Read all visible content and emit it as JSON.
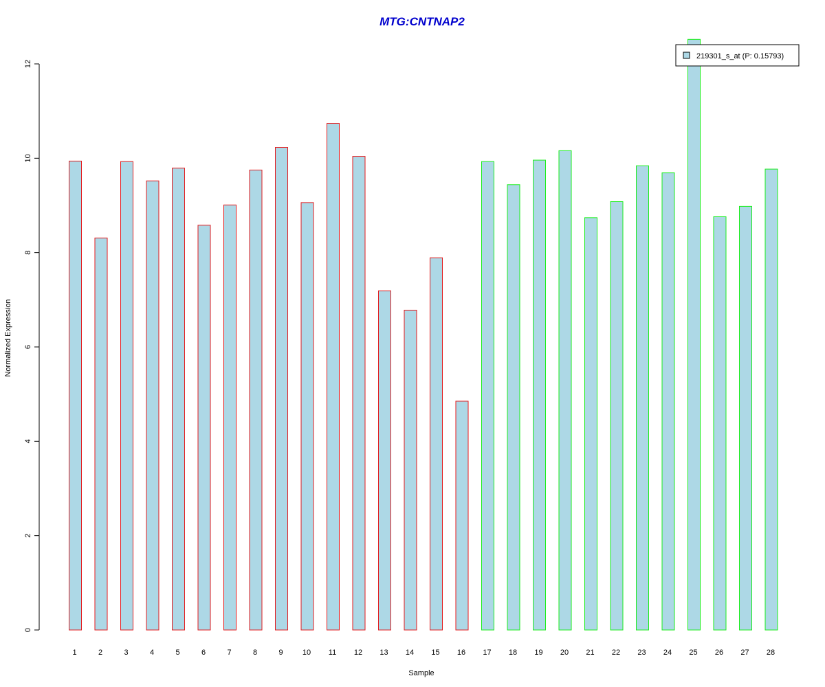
{
  "chart_data": {
    "type": "bar",
    "title": "MTG:CNTNAP2",
    "xlabel": "Sample",
    "ylabel": "Normalized Expression",
    "ylim": [
      0,
      12
    ],
    "yticks": [
      "0",
      "2",
      "4",
      "6",
      "8",
      "10",
      "12"
    ],
    "categories": [
      "1",
      "2",
      "3",
      "4",
      "5",
      "6",
      "7",
      "8",
      "9",
      "10",
      "11",
      "12",
      "13",
      "14",
      "15",
      "16",
      "17",
      "18",
      "19",
      "20",
      "21",
      "22",
      "23",
      "24",
      "25",
      "26",
      "27",
      "28"
    ],
    "values": [
      9.94,
      8.31,
      9.93,
      9.52,
      9.79,
      8.58,
      9.01,
      9.75,
      10.23,
      9.06,
      10.74,
      10.04,
      7.19,
      6.78,
      7.89,
      4.85,
      9.93,
      9.44,
      9.96,
      10.16,
      8.74,
      9.08,
      9.84,
      9.69,
      12.52,
      8.76,
      8.98,
      9.77
    ],
    "group_border_colors": [
      "#e31a1c",
      "#e31a1c",
      "#e31a1c",
      "#e31a1c",
      "#e31a1c",
      "#e31a1c",
      "#e31a1c",
      "#e31a1c",
      "#e31a1c",
      "#e31a1c",
      "#e31a1c",
      "#e31a1c",
      "#e31a1c",
      "#e31a1c",
      "#e31a1c",
      "#e31a1c",
      "#1aee1a",
      "#1aee1a",
      "#1aee1a",
      "#1aee1a",
      "#1aee1a",
      "#1aee1a",
      "#1aee1a",
      "#1aee1a",
      "#1aee1a",
      "#1aee1a",
      "#1aee1a",
      "#1aee1a"
    ],
    "bar_fill": "#add8e6",
    "legend": {
      "position": "top-right",
      "label": "219301_s_at (P: 0.15793)",
      "swatch_color": "#add8e6"
    },
    "grid": false
  }
}
